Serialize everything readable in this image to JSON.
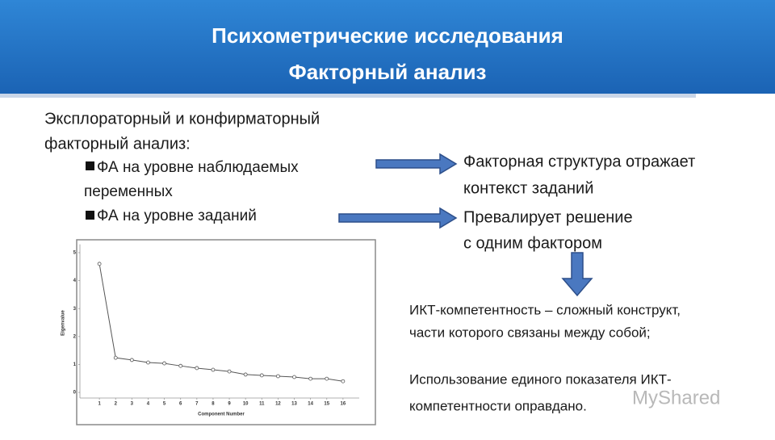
{
  "header": {
    "title_lines": [
      "Психометрические исследования",
      "Факторный анализ"
    ]
  },
  "intro": {
    "lines": [
      "Эксплораторный и конфирматорный",
      "факторный анализ:"
    ]
  },
  "bullets": [
    {
      "lines": [
        "ФА на уровне наблюдаемых",
        "переменных"
      ]
    },
    {
      "lines": [
        "ФА на уровне заданий"
      ]
    }
  ],
  "results": [
    {
      "lines": [
        "Факторная структура отражает",
        "контекст заданий"
      ]
    },
    {
      "lines": [
        "Превалирует решение",
        "с одним фактором"
      ]
    }
  ],
  "conclusion": {
    "lines": [
      "ИКТ-компетентность – сложный конструкт,",
      "части которого связаны между собой;",
      "Использование единого показателя ИКТ-",
      "компетентности оправдано."
    ]
  },
  "watermark": "MyShared",
  "chart_data": {
    "type": "line",
    "x_label": "Component Number",
    "y_label": "Eigenvalue",
    "x": [
      1,
      2,
      3,
      4,
      5,
      6,
      7,
      8,
      9,
      10,
      11,
      12,
      13,
      14,
      15,
      16
    ],
    "series": [
      {
        "color": "#555555",
        "values": [
          4.6,
          1.24,
          1.16,
          1.07,
          1.04,
          0.95,
          0.87,
          0.81,
          0.75,
          0.64,
          0.61,
          0.58,
          0.55,
          0.49,
          0.49,
          0.4
        ]
      }
    ],
    "xlim": [
      0,
      17
    ],
    "xticks": [
      1,
      2,
      3,
      4,
      5,
      6,
      7,
      8,
      9,
      10,
      11,
      12,
      13,
      14,
      15,
      16
    ],
    "ylim": [
      -0.2,
      5.3
    ],
    "yticks": [
      0,
      1,
      2,
      3,
      4,
      5
    ]
  }
}
